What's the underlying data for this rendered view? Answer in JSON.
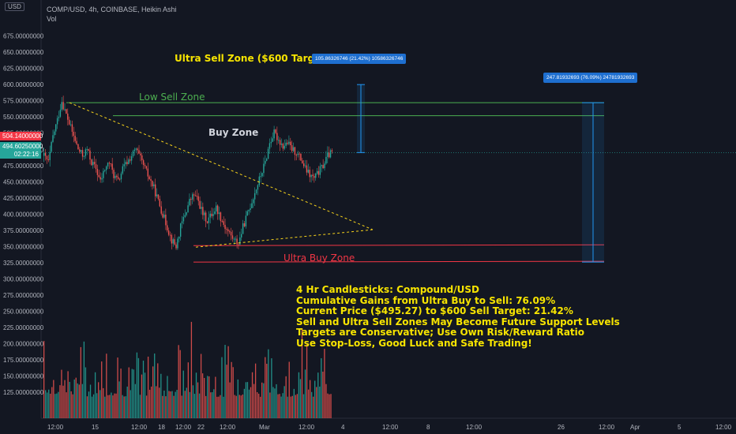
{
  "window": {
    "currency_button": "USD",
    "legend_symbol": "COMP/USD, 4h, COINBASE, Heikin Ashi",
    "legend_volume": "Vol",
    "last_price": "504.14000000",
    "current_price": "494.60250000",
    "countdown": "02:22:16"
  },
  "annotations": {
    "ultra_sell_zone": "Ultra Sell Zone ($600 Target)",
    "low_sell_zone": "Low Sell Zone",
    "buy_zone": "Buy Zone",
    "ultra_buy_zone": "Ultra Buy Zone",
    "measure_short": "105.86326746 (21.42%) 10586326746",
    "measure_long": "247.81932693 (76.09%) 24781932693",
    "notes": [
      "4 Hr Candlesticks: Compound/USD",
      "Cumulative Gains from Ultra Buy to Sell: 76.09%",
      "Current Price ($495.27) to $600 Sell Target: 21.42%",
      "Sell and Ultra Sell Zones May Become Future Support Levels",
      "Targets are Conservative; Use Own Risk/Reward Ratio",
      "Use Stop-Loss, Good Luck and Safe Trading!"
    ]
  },
  "colors": {
    "background": "#131722",
    "up": "#26a69a",
    "down": "#ef5350",
    "green_line": "#4caf50",
    "red_line": "#f23645",
    "triangle": "#f7d31b",
    "measure": "#2196f3",
    "note_text": "#f7e400",
    "zone_title": "#f7e400",
    "low_sell_text": "#4caf50",
    "ultra_buy_text": "#f23645"
  },
  "chart_data": {
    "type": "candlestick",
    "y_tick_labels": [
      "675.00000000",
      "650.00000000",
      "625.00000000",
      "600.00000000",
      "575.00000000",
      "550.00000000",
      "525.00000000",
      "500.00000000",
      "475.00000000",
      "450.00000000",
      "425.00000000",
      "400.00000000",
      "375.00000000",
      "350.00000000",
      "325.00000000",
      "300.00000000",
      "275.00000000",
      "250.00000000",
      "225.00000000",
      "200.00000000",
      "175.00000000",
      "150.00000000",
      "125.00000000"
    ],
    "y_ticks": [
      675,
      650,
      625,
      600,
      575,
      550,
      525,
      500,
      475,
      450,
      425,
      400,
      375,
      350,
      325,
      300,
      275,
      250,
      225,
      200,
      175,
      150,
      125
    ],
    "ylim": [
      112,
      688
    ],
    "x_tick_labels": [
      "12:00",
      "15",
      "12:00",
      "18",
      "12:00",
      "22",
      "12:00",
      "Mar",
      "12:00",
      "4",
      "12:00",
      "8",
      "12:00",
      "26",
      "12:00",
      "Apr",
      "5",
      "12:00"
    ],
    "ultra_sell_level": 600,
    "low_sell_level": 572,
    "sell_level": 552,
    "ultra_buy_level": 349,
    "bottom_level": 326,
    "close_path": [
      [
        0,
        490
      ],
      [
        3,
        480
      ],
      [
        6,
        520
      ],
      [
        9,
        545
      ],
      [
        12,
        575
      ],
      [
        14,
        560
      ],
      [
        17,
        540
      ],
      [
        20,
        520
      ],
      [
        23,
        500
      ],
      [
        26,
        490
      ],
      [
        29,
        500
      ],
      [
        32,
        480
      ],
      [
        35,
        470
      ],
      [
        38,
        450
      ],
      [
        41,
        470
      ],
      [
        44,
        480
      ],
      [
        47,
        460
      ],
      [
        50,
        450
      ],
      [
        53,
        470
      ],
      [
        56,
        480
      ],
      [
        59,
        490
      ],
      [
        62,
        500
      ],
      [
        65,
        485
      ],
      [
        68,
        470
      ],
      [
        71,
        455
      ],
      [
        74,
        440
      ],
      [
        77,
        420
      ],
      [
        80,
        400
      ],
      [
        83,
        380
      ],
      [
        86,
        360
      ],
      [
        89,
        350
      ],
      [
        92,
        380
      ],
      [
        95,
        400
      ],
      [
        98,
        420
      ],
      [
        101,
        430
      ],
      [
        104,
        420
      ],
      [
        107,
        400
      ],
      [
        110,
        390
      ],
      [
        113,
        400
      ],
      [
        116,
        410
      ],
      [
        119,
        395
      ],
      [
        122,
        380
      ],
      [
        125,
        370
      ],
      [
        128,
        360
      ],
      [
        131,
        355
      ],
      [
        134,
        380
      ],
      [
        137,
        400
      ],
      [
        140,
        420
      ],
      [
        143,
        440
      ],
      [
        146,
        460
      ],
      [
        149,
        480
      ],
      [
        152,
        510
      ],
      [
        155,
        525
      ],
      [
        158,
        515
      ],
      [
        161,
        505
      ],
      [
        164,
        510
      ],
      [
        167,
        500
      ],
      [
        170,
        495
      ],
      [
        173,
        485
      ],
      [
        176,
        470
      ],
      [
        179,
        460
      ],
      [
        182,
        455
      ],
      [
        185,
        465
      ],
      [
        188,
        475
      ],
      [
        191,
        490
      ],
      [
        194,
        495
      ]
    ]
  }
}
